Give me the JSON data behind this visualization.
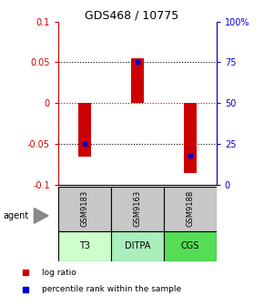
{
  "title": "GDS468 / 10775",
  "samples": [
    "GSM9183",
    "GSM9163",
    "GSM9188"
  ],
  "agents": [
    "T3",
    "DITPA",
    "CGS"
  ],
  "log_ratios": [
    -0.065,
    0.055,
    -0.085
  ],
  "percentile_ranks": [
    0.25,
    0.75,
    0.18
  ],
  "bar_color": "#cc0000",
  "percentile_color": "#0000cc",
  "ylim_left": [
    -0.1,
    0.1
  ],
  "ylim_right": [
    0,
    100
  ],
  "yticks_left": [
    -0.1,
    -0.05,
    0,
    0.05,
    0.1
  ],
  "yticks_right": [
    0,
    25,
    50,
    75,
    100
  ],
  "ytick_labels_left": [
    "-0.1",
    "-0.05",
    "0",
    "0.05",
    "0.1"
  ],
  "ytick_labels_right": [
    "0",
    "25",
    "50",
    "75",
    "100%"
  ],
  "agent_colors": [
    "#ccffcc",
    "#aaeebb",
    "#55dd55"
  ],
  "sample_box_color": "#c8c8c8",
  "bar_width": 0.25,
  "zero_line_color": "#cc0000"
}
